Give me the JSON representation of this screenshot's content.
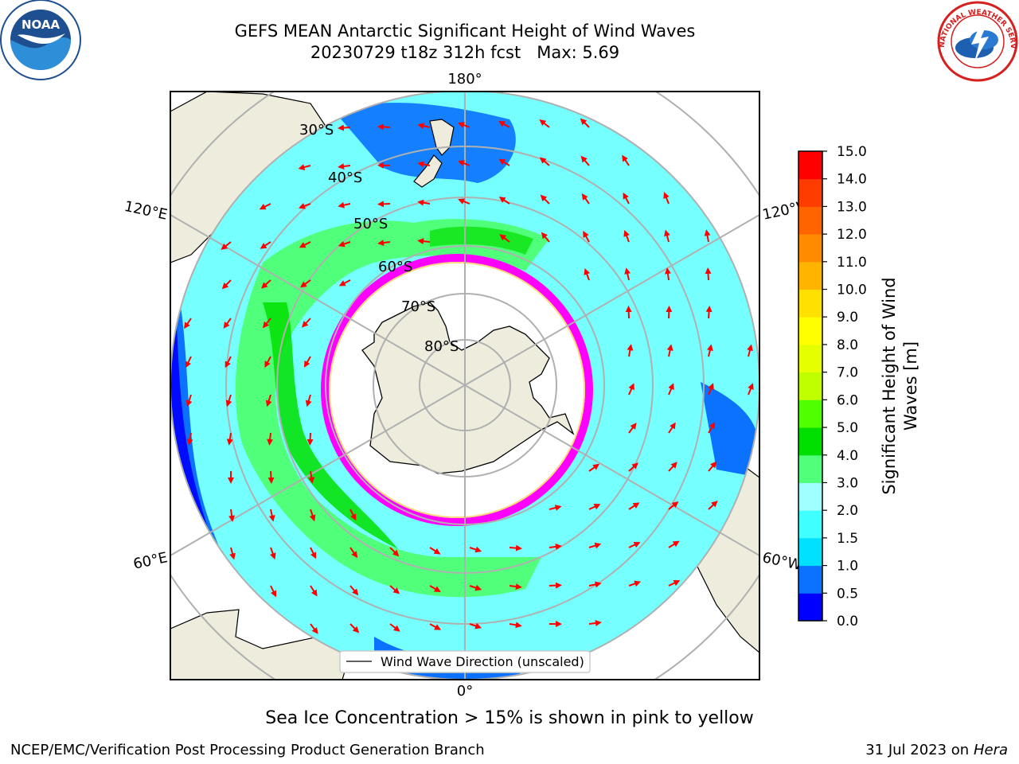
{
  "title_line1": "GEFS MEAN Antarctic Significant Height of Wind Waves",
  "title_date": "20230729 t18z 312h fcst",
  "title_max": "Max: 5.69",
  "logos": {
    "left": "NOAA",
    "right": "NATIONAL WEATHER SERVICE"
  },
  "map": {
    "lon_labels": {
      "top": "180°",
      "bottom": "0°",
      "left_upper": "120°E",
      "left_lower": "60°E",
      "right_upper": "120°W",
      "right_lower": "60°W"
    },
    "lat_labels": [
      "30°S",
      "40°S",
      "50°S",
      "60°S",
      "70°S",
      "80°S"
    ],
    "legend_label": "Wind Wave Direction (unscaled)"
  },
  "colorbar": {
    "label_line1": "Significant Height of Wind",
    "label_line2": "Waves [m]",
    "ticks": [
      "0.0",
      "0.5",
      "1.0",
      "1.5",
      "2.0",
      "3.0",
      "4.0",
      "5.0",
      "6.0",
      "7.0",
      "8.0",
      "9.0",
      "10.0",
      "11.0",
      "12.0",
      "13.0",
      "14.0",
      "15.0"
    ],
    "colors": [
      "#0000ff",
      "#0a72ff",
      "#00e0ff",
      "#40ffff",
      "#a0ffff",
      "#50ff7a",
      "#00e000",
      "#50ff00",
      "#c0ff00",
      "#e6ff00",
      "#ffff00",
      "#ffe000",
      "#ffb400",
      "#ff8c00",
      "#ff6400",
      "#ff3c00",
      "#ff0000"
    ]
  },
  "caption": "Sea Ice Concentration > 15% is shown in pink to yellow",
  "footer_left": "NCEP/EMC/Verification Post Processing Product Generation Branch",
  "footer_date": "31 Jul 2023 on",
  "footer_machine": "Hera",
  "colors": {
    "land": "#eeecdc",
    "ice": "#ff00ff",
    "arrow": "#ff0000",
    "grid": "#b0b0b0"
  }
}
